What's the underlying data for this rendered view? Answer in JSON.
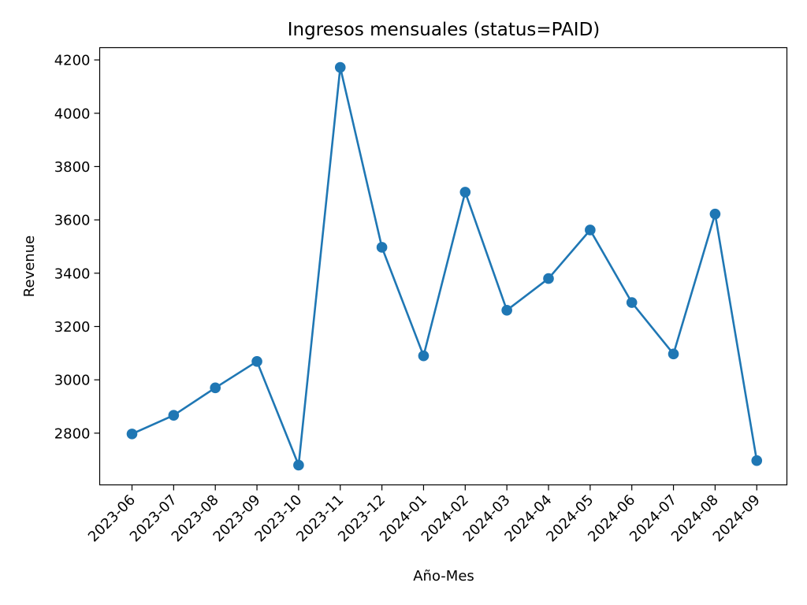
{
  "chart_data": {
    "type": "line",
    "title": "Ingresos mensuales (status=PAID)",
    "xlabel": "Año-Mes",
    "ylabel": "Revenue",
    "categories": [
      "2023-06",
      "2023-07",
      "2023-08",
      "2023-09",
      "2023-10",
      "2023-11",
      "2023-12",
      "2024-01",
      "2024-02",
      "2024-03",
      "2024-04",
      "2024-05",
      "2024-06",
      "2024-07",
      "2024-08",
      "2024-09"
    ],
    "series": [
      {
        "name": "",
        "values": [
          2797,
          2867,
          2970,
          3069,
          2680,
          4172,
          3497,
          3090,
          3704,
          3261,
          3380,
          3562,
          3290,
          3097,
          3622,
          2697
        ],
        "color": "#1f77b4",
        "marker": "circle"
      }
    ],
    "ylim": [
      2606,
      4246
    ],
    "yticks": [
      2800,
      3000,
      3200,
      3400,
      3600,
      3800,
      4000,
      4200
    ],
    "grid": false,
    "legend": "none"
  }
}
